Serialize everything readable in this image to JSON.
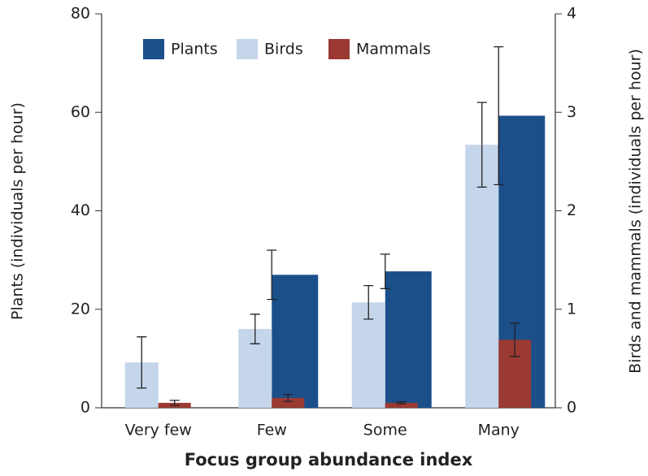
{
  "chart_data": {
    "type": "bar",
    "x_label": "Focus group abundance index",
    "y_label": "Plants (individuals per hour)",
    "y2_label": "Birds and mammals (individuals per hour)",
    "categories": [
      "Very few",
      "Few",
      "Some",
      "Many"
    ],
    "series": [
      {
        "name": "Plants",
        "color": "#1b4f8a",
        "axis": "y",
        "values": [
          0,
          27,
          27.7,
          59.3
        ],
        "errors": [
          null,
          5,
          3.5,
          14
        ]
      },
      {
        "name": "Birds",
        "color": "#c5d5ea",
        "axis": "y2",
        "values": [
          0.46,
          0.8,
          1.07,
          2.67
        ],
        "errors": [
          0.26,
          0.15,
          0.17,
          0.43
        ]
      },
      {
        "name": "Mammals",
        "color": "#9b3a33",
        "axis": "y2",
        "values": [
          0.05,
          0.1,
          0.05,
          0.69
        ],
        "errors": [
          0.025,
          0.035,
          0.01,
          0.17
        ]
      }
    ],
    "ylim": [
      0,
      80
    ],
    "yticks": [
      0,
      20,
      40,
      60,
      80
    ],
    "y2lim": [
      0,
      4
    ],
    "y2ticks": [
      0,
      1,
      2,
      3,
      4
    ],
    "legend": "top"
  }
}
